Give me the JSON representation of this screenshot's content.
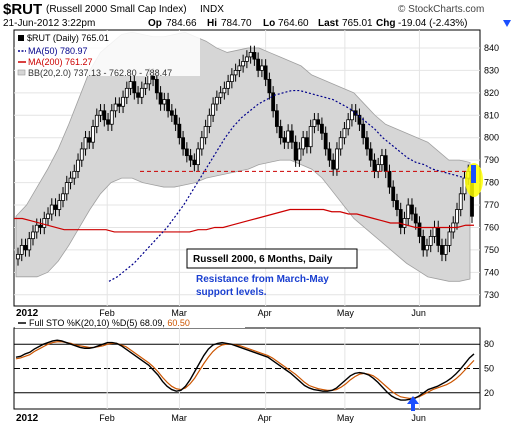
{
  "header": {
    "symbol": "$RUT",
    "name": "(Russell 2000 Small Cap Index)",
    "exchange": "INDX",
    "brand": "© StockCharts.com",
    "date": "21-Jun-2012 3:22pm",
    "op_label": "Op",
    "op": "784.66",
    "hi_label": "Hi",
    "hi": "784.70",
    "lo_label": "Lo",
    "lo": "764.60",
    "last_label": "Last",
    "last": "765.01",
    "chg_label": "Chg",
    "chg": "-19.04 (-2.43%)"
  },
  "legend": {
    "price": "$RUT (Daily) 765.01",
    "ma50": "MA(50) 780.97",
    "ma200": "MA(200) 761.27",
    "bb": "BB(20,2.0) 737.13 - 762.80 - 788.47"
  },
  "annotation": {
    "box_label": "Russell 2000, 6 Months, Daily",
    "note_line1": "Resistance from March-May",
    "note_line2": "support levels."
  },
  "sto_legend": {
    "label": "Full STO %K(20,10) %D(5) 68.09,",
    "d_value": "60.50"
  },
  "colors": {
    "ma50": "#00008b",
    "ma200": "#cc0000",
    "band": "#d6d6d6",
    "resistance": "#cc0000",
    "highlight": "#ffff00",
    "arrow": "#1a4fff"
  },
  "chart_data": [
    {
      "type": "candlestick",
      "title": "$RUT (Daily)",
      "x_labels": [
        "2012",
        "Feb",
        "Mar",
        "Apr",
        "May",
        "Jun"
      ],
      "y_ticks": [
        730,
        740,
        750,
        760,
        770,
        780,
        790,
        800,
        810,
        820,
        830,
        840
      ],
      "ylim": [
        725,
        848
      ],
      "grid": true,
      "close": [
        748,
        752,
        750,
        755,
        758,
        761,
        760,
        764,
        766,
        770,
        768,
        772,
        775,
        780,
        782,
        785,
        790,
        795,
        800,
        798,
        805,
        810,
        812,
        808,
        806,
        812,
        815,
        814,
        818,
        822,
        825,
        820,
        818,
        822,
        824,
        828,
        826,
        820,
        815,
        817,
        812,
        810,
        806,
        800,
        795,
        792,
        790,
        788,
        795,
        800,
        805,
        810,
        815,
        818,
        820,
        822,
        825,
        828,
        830,
        832,
        834,
        836,
        838,
        835,
        830,
        832,
        826,
        820,
        812,
        805,
        800,
        798,
        803,
        798,
        790,
        795,
        800,
        796,
        805,
        808,
        806,
        802,
        795,
        790,
        786,
        795,
        800,
        804,
        808,
        812,
        810,
        806,
        800,
        795,
        790,
        785,
        788,
        792,
        785,
        778,
        772,
        768,
        760,
        764,
        770,
        766,
        762,
        756,
        750,
        752,
        756,
        760,
        752,
        748,
        752,
        758,
        762,
        768,
        775,
        782,
        785,
        765
      ],
      "ma50": [
        736,
        738,
        741,
        744,
        748,
        752,
        756,
        760,
        765,
        770,
        776,
        782,
        788,
        794,
        800,
        805,
        809,
        812,
        815,
        817,
        819,
        820,
        821,
        821,
        820,
        819,
        818,
        817,
        815,
        813,
        810,
        807,
        804,
        800,
        797,
        794,
        791,
        789,
        788,
        786,
        785,
        784,
        783,
        782,
        781
      ],
      "ma200": [
        764,
        764,
        763,
        762,
        761,
        760,
        759,
        759,
        759,
        759,
        759,
        759,
        758,
        758,
        758,
        758,
        758,
        758,
        758,
        758,
        758,
        758,
        759,
        759,
        760,
        760,
        761,
        762,
        763,
        764,
        765,
        766,
        767,
        768,
        768,
        768,
        768,
        768,
        767,
        767,
        766,
        766,
        765,
        764,
        763,
        762,
        762,
        761,
        760,
        760,
        760,
        760,
        760,
        760,
        761,
        761
      ],
      "bb_upper": [
        765,
        770,
        778,
        786,
        795,
        806,
        818,
        830,
        838,
        842,
        846,
        847,
        846,
        845,
        845,
        846,
        847,
        845,
        843,
        840,
        838,
        839,
        840,
        840,
        838,
        836,
        834,
        832,
        828,
        826,
        824,
        822,
        820,
        815,
        810,
        806,
        804,
        802,
        800,
        798,
        794,
        790,
        790,
        789
      ],
      "bb_lower": [
        738,
        738,
        738,
        740,
        745,
        752,
        760,
        768,
        775,
        780,
        782,
        782,
        780,
        779,
        778,
        778,
        779,
        780,
        782,
        783,
        784,
        785,
        786,
        788,
        789,
        790,
        790,
        788,
        786,
        782,
        776,
        770,
        764,
        760,
        756,
        752,
        748,
        744,
        741,
        738,
        737,
        736,
        736,
        737
      ],
      "resistance_level": 785
    },
    {
      "type": "line",
      "title": "Full STO %K(20,10) %D(5)",
      "x_labels": [
        "2012",
        "Feb",
        "Mar",
        "Apr",
        "May",
        "Jun"
      ],
      "y_ticks": [
        20,
        50,
        80
      ],
      "ylim": [
        0,
        100
      ],
      "series": [
        {
          "name": "%K",
          "values": [
            64,
            65,
            68,
            70,
            74,
            77,
            80,
            82,
            84,
            85,
            84,
            82,
            80,
            78,
            76,
            75,
            75,
            76,
            78,
            80,
            82,
            82,
            81,
            78,
            74,
            70,
            66,
            62,
            58,
            54,
            48,
            42,
            34,
            28,
            24,
            22,
            23,
            28,
            36,
            46,
            56,
            66,
            74,
            79,
            81,
            82,
            81,
            80,
            78,
            76,
            74,
            72,
            70,
            68,
            66,
            64,
            60,
            56,
            52,
            48,
            44,
            39,
            34,
            29,
            26,
            24,
            23,
            22,
            22,
            23,
            26,
            31,
            36,
            41,
            44,
            45,
            44,
            42,
            38,
            33,
            27,
            21,
            16,
            13,
            11,
            11,
            12,
            13,
            16,
            20,
            24,
            26,
            28,
            31,
            34,
            38,
            43,
            49,
            56,
            63,
            68
          ]
        },
        {
          "name": "%D",
          "values": [
            62,
            63,
            65,
            67,
            71,
            74,
            77,
            80,
            82,
            83,
            83,
            82,
            81,
            79,
            78,
            77,
            76,
            76,
            77,
            78,
            80,
            81,
            81,
            79,
            77,
            73,
            69,
            65,
            61,
            57,
            52,
            46,
            39,
            33,
            28,
            25,
            24,
            26,
            31,
            38,
            47,
            56,
            64,
            71,
            76,
            79,
            80,
            80,
            79,
            78,
            76,
            74,
            72,
            70,
            68,
            66,
            63,
            59,
            55,
            51,
            47,
            43,
            38,
            33,
            29,
            27,
            25,
            24,
            23,
            23,
            24,
            27,
            31,
            36,
            40,
            43,
            44,
            43,
            41,
            37,
            32,
            27,
            22,
            18,
            15,
            14,
            13,
            14,
            15,
            18,
            21,
            24,
            26,
            28,
            30,
            33,
            37,
            42,
            48,
            54,
            60
          ]
        }
      ],
      "reference_lines": [
        20,
        50,
        80
      ]
    }
  ]
}
